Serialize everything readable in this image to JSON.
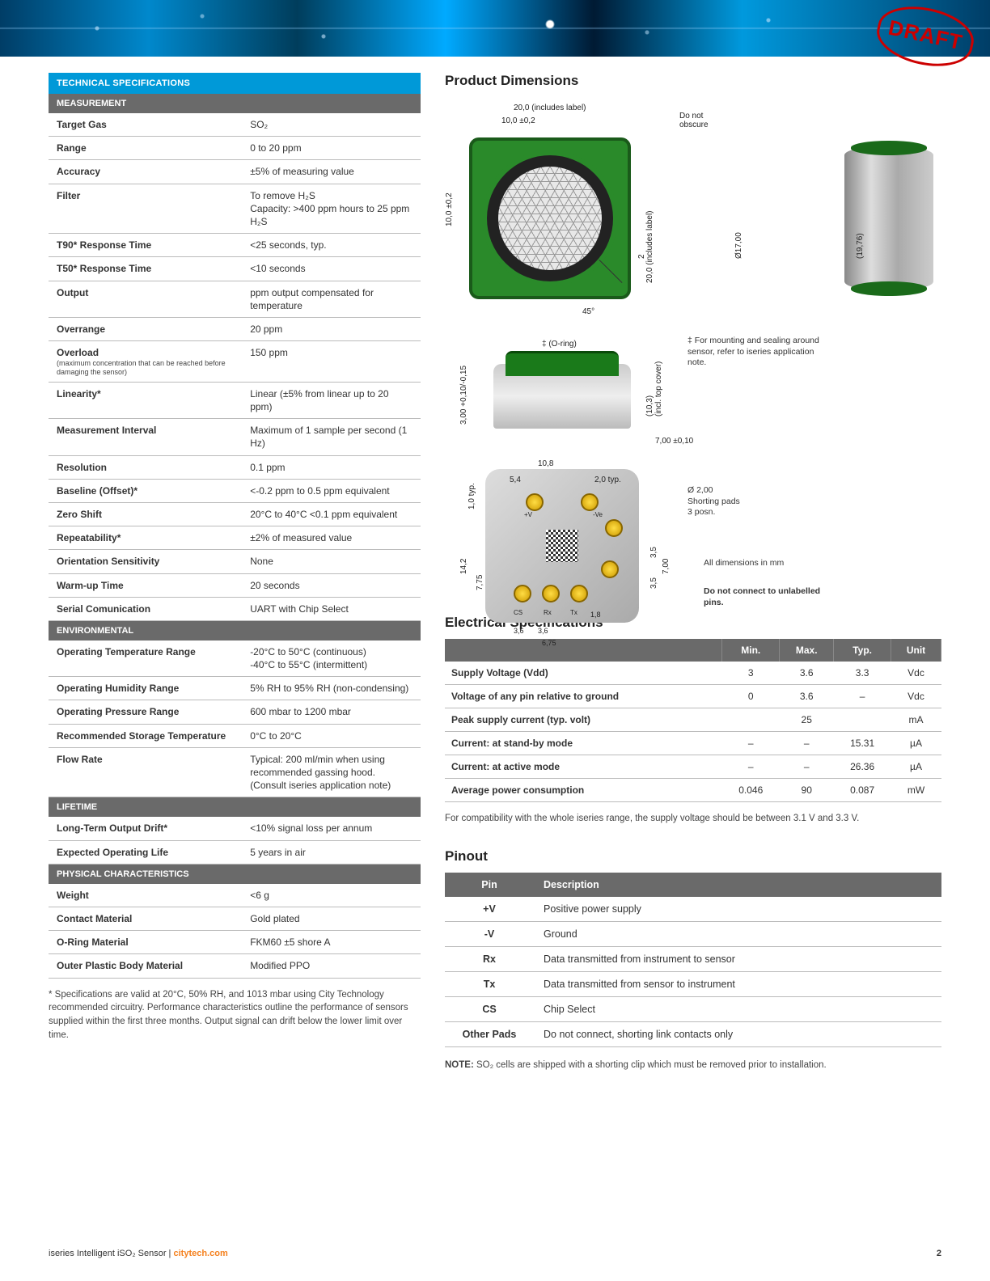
{
  "draft_stamp": "DRAFT",
  "tech_specs_header": "TECHNICAL SPECIFICATIONS",
  "sections": {
    "measurement": {
      "header": "MEASUREMENT",
      "rows": [
        {
          "label": "Target Gas",
          "value": "SO₂"
        },
        {
          "label": "Range",
          "value": "0 to 20 ppm"
        },
        {
          "label": "Accuracy",
          "value": "±5% of measuring value"
        },
        {
          "label": "Filter",
          "value": "To remove H₂S\nCapacity: >400 ppm hours to 25 ppm H₂S"
        },
        {
          "label": "T90* Response Time",
          "value": "<25 seconds, typ."
        },
        {
          "label": "T50* Response Time",
          "value": "<10 seconds"
        },
        {
          "label": "Output",
          "value": "ppm output compensated for temperature"
        },
        {
          "label": "Overrange",
          "value": "20 ppm"
        },
        {
          "label": "Overload",
          "sublabel": "(maximum concentration that can be reached before damaging the sensor)",
          "value": "150 ppm"
        },
        {
          "label": "Linearity*",
          "value": "Linear (±5% from linear up to 20 ppm)"
        },
        {
          "label": "Measurement Interval",
          "value": "Maximum of 1 sample per second (1 Hz)"
        },
        {
          "label": "Resolution",
          "value": "0.1 ppm"
        },
        {
          "label": "Baseline (Offset)*",
          "value": "<-0.2 ppm to 0.5 ppm equivalent"
        },
        {
          "label": "Zero Shift",
          "value": "20°C to 40°C <0.1 ppm equivalent"
        },
        {
          "label": "Repeatability*",
          "value": "±2% of measured value"
        },
        {
          "label": "Orientation Sensitivity",
          "value": "None"
        },
        {
          "label": "Warm-up Time",
          "value": "20 seconds"
        },
        {
          "label": "Serial Comunication",
          "value": "UART with Chip Select"
        }
      ]
    },
    "environmental": {
      "header": "ENVIRONMENTAL",
      "rows": [
        {
          "label": "Operating Temperature Range",
          "value": "-20°C to 50°C (continuous)\n-40°C to 55°C (intermittent)"
        },
        {
          "label": "Operating Humidity Range",
          "value": "5% RH to 95% RH (non-condensing)"
        },
        {
          "label": "Operating Pressure Range",
          "value": "600 mbar to 1200 mbar"
        },
        {
          "label": "Recommended Storage Temperature",
          "value": "0°C to 20°C"
        },
        {
          "label": "Flow Rate",
          "value": "Typical: 200 ml/min when using recommended gassing hood.\n(Consult iseries application note)"
        }
      ]
    },
    "lifetime": {
      "header": "LIFETIME",
      "rows": [
        {
          "label": "Long-Term Output Drift*",
          "value": "<10% signal loss per annum"
        },
        {
          "label": "Expected Operating Life",
          "value": "5 years in air"
        }
      ]
    },
    "physical": {
      "header": "PHYSICAL CHARACTERISTICS",
      "rows": [
        {
          "label": "Weight",
          "value": "<6 g"
        },
        {
          "label": "Contact Material",
          "value": "Gold plated"
        },
        {
          "label": "O-Ring Material",
          "value": "FKM60 ±5 shore A"
        },
        {
          "label": "Outer Plastic Body Material",
          "value": "Modified PPO"
        }
      ]
    }
  },
  "spec_footnote": "* Specifications are valid at 20°C, 50% RH, and 1013 mbar using City Technology recommended circuitry. Performance characteristics outline the performance of sensors supplied within the first three months. Output signal can drift below the lower limit over time.",
  "dimensions": {
    "title": "Product Dimensions",
    "labels": {
      "width_full": "20,0 (includes label)",
      "width_half": "10,0 ±0,2",
      "do_not_obscure": "Do not obscure",
      "height_full": "20,0 (includes label)",
      "height_half": "10,0 ±0,2",
      "angle": "45°",
      "diameter": "Ø17,00",
      "side_height": "(19,76)",
      "two": "2",
      "oring": "‡ (O-ring)",
      "oring_h": "3,00 +0,10/-0,15",
      "oring_note": "‡ For mounting and sealing around sensor, refer to iseries application note.",
      "top_cover": "(10,3)\n(incl. top cover)",
      "seven": "7,00 ±0,10",
      "b_10_8": "10,8",
      "b_5_4": "5,4",
      "b_2_0": "2,0 typ.",
      "b_1_0": "1,0 typ.",
      "b_14_2": "14,2",
      "b_7_75": "7,75",
      "b_3_5a": "3,5",
      "b_3_5b": "3,5",
      "b_7_00": "7,00",
      "b_1_8": "1,8",
      "b_3_6a": "3,6",
      "b_3_6b": "3,6",
      "b_6_75": "6,75",
      "shorting": "Ø 2,00\nShorting pads\n3 posn.",
      "pins_v": "+V",
      "pins_ve": "-Ve",
      "pins_cs": "CS",
      "pins_rx": "Rx",
      "pins_tx": "Tx",
      "all_mm": "All dimensions in mm",
      "do_not_connect": "Do not connect to unlabelled pins."
    }
  },
  "electrical": {
    "title": "Electrical Specifications",
    "headers": [
      "",
      "Min.",
      "Max.",
      "Typ.",
      "Unit"
    ],
    "rows": [
      {
        "label": "Supply Voltage (Vdd)",
        "min": "3",
        "max": "3.6",
        "typ": "3.3",
        "unit": "Vdc"
      },
      {
        "label": "Voltage of any pin relative to ground",
        "min": "0",
        "max": "3.6",
        "typ": "–",
        "unit": "Vdc"
      },
      {
        "label": "Peak supply current (typ. volt)",
        "min": "",
        "max": "25",
        "typ": "",
        "unit": "mA"
      },
      {
        "label": "Current: at stand-by mode",
        "min": "–",
        "max": "–",
        "typ": "15.31",
        "unit": "µA"
      },
      {
        "label": "Current: at active mode",
        "min": "–",
        "max": "–",
        "typ": "26.36",
        "unit": "µA"
      },
      {
        "label": "Average power consumption",
        "min": "0.046",
        "max": "90",
        "typ": "0.087",
        "unit": "mW"
      }
    ],
    "footnote": "For compatibility with the whole iseries range, the supply voltage should be between 3.1 V and 3.3 V."
  },
  "pinout": {
    "title": "Pinout",
    "headers": [
      "Pin",
      "Description"
    ],
    "rows": [
      {
        "pin": "+V",
        "desc": "Positive power supply"
      },
      {
        "pin": "-V",
        "desc": "Ground"
      },
      {
        "pin": "Rx",
        "desc": "Data transmitted from instrument to sensor"
      },
      {
        "pin": "Tx",
        "desc": "Data transmitted from sensor to instrument"
      },
      {
        "pin": "CS",
        "desc": "Chip Select"
      },
      {
        "pin": "Other Pads",
        "desc": "Do not connect, shorting link contacts only"
      }
    ],
    "note_prefix": "NOTE:",
    "note": " SO₂ cells are shipped with a shorting clip which must be removed prior to installation."
  },
  "footer": {
    "product": "iseries Intelligent iSO₂ Sensor | ",
    "brand": "citytech.com",
    "page": "2"
  }
}
